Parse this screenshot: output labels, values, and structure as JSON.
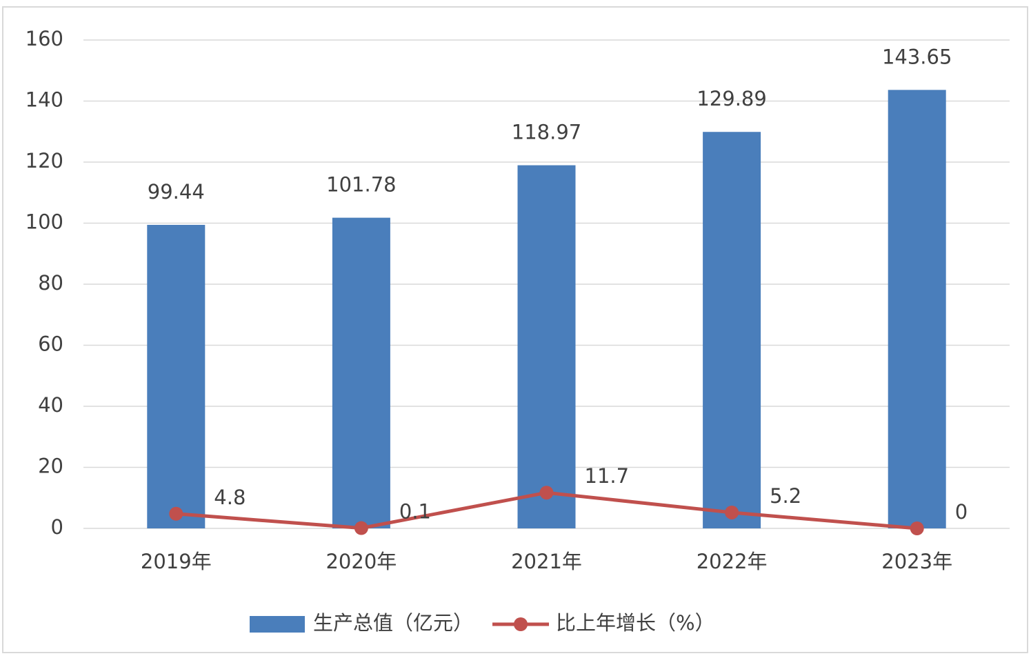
{
  "chart_data": {
    "type": "bar",
    "categories": [
      "2019年",
      "2020年",
      "2021年",
      "2022年",
      "2023年"
    ],
    "series": [
      {
        "name": "生产总值（亿元）",
        "type": "bar",
        "color": "#4a7ebb",
        "values": [
          99.44,
          101.78,
          118.97,
          129.89,
          143.65
        ]
      },
      {
        "name": "比上年增长（%）",
        "type": "line",
        "color": "#c0504d",
        "values": [
          4.8,
          0.1,
          11.7,
          5.2,
          0
        ]
      }
    ],
    "ylim": [
      0,
      160
    ],
    "yticks": [
      0,
      20,
      40,
      60,
      80,
      100,
      120,
      140,
      160
    ],
    "grid": true,
    "legend": "bottom"
  }
}
